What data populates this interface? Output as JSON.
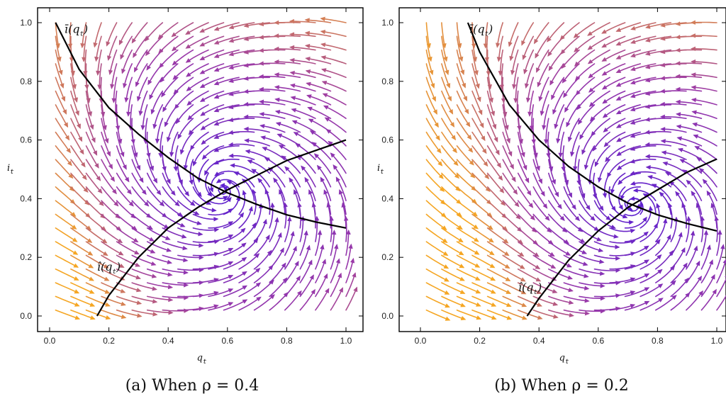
{
  "panels": [
    {
      "caption": "(a) When ρ = 0.4",
      "curve_bar_label": "ī(q",
      "curve_hat_label": "î(q",
      "curve_label_sub": "t",
      "curve_label_close": ")"
    },
    {
      "caption": "(b) When ρ = 0.2",
      "curve_bar_label": "ī(q",
      "curve_hat_label": "î(q",
      "curve_label_sub": "t",
      "curve_label_close": ")"
    }
  ],
  "colors": {
    "low_speed": "#5a1fd1",
    "mid_speed": "#9b3aa8",
    "high_speed": "#f5a623",
    "curve": "#000000"
  },
  "chart_data": [
    {
      "type": "streamplot",
      "xlabel": "q_t",
      "ylabel": "i_t",
      "xlim": [
        0.0,
        1.0
      ],
      "ylim": [
        0.0,
        1.0
      ],
      "xticks": [
        "0.0",
        "0.2",
        "0.4",
        "0.6",
        "0.8",
        "1.0"
      ],
      "yticks": [
        "0.0",
        "0.2",
        "0.4",
        "0.6",
        "0.8",
        "1.0"
      ],
      "curves": [
        {
          "name": "ī(q_t)",
          "x": [
            0.02,
            0.1,
            0.2,
            0.3,
            0.4,
            0.5,
            0.6,
            0.7,
            0.8,
            0.9,
            1.0
          ],
          "y": [
            1.0,
            0.84,
            0.71,
            0.62,
            0.54,
            0.47,
            0.42,
            0.38,
            0.345,
            0.32,
            0.3
          ]
        },
        {
          "name": "î(q_t)",
          "x": [
            0.16,
            0.2,
            0.3,
            0.4,
            0.5,
            0.6,
            0.7,
            0.8,
            0.9,
            1.0
          ],
          "y": [
            0.0,
            0.07,
            0.2,
            0.3,
            0.37,
            0.43,
            0.48,
            0.53,
            0.565,
            0.6
          ]
        }
      ],
      "fixed_point": [
        0.58,
        0.43
      ],
      "grid": false
    },
    {
      "type": "streamplot",
      "xlabel": "q_t",
      "ylabel": "i_t",
      "xlim": [
        0.0,
        1.0
      ],
      "ylim": [
        0.0,
        1.0
      ],
      "xticks": [
        "0.0",
        "0.2",
        "0.4",
        "0.6",
        "0.8",
        "1.0"
      ],
      "yticks": [
        "0.0",
        "0.2",
        "0.4",
        "0.6",
        "0.8",
        "1.0"
      ],
      "curves": [
        {
          "name": "ī(q_t)",
          "x": [
            0.16,
            0.2,
            0.3,
            0.4,
            0.5,
            0.6,
            0.7,
            0.8,
            0.9,
            1.0
          ],
          "y": [
            1.0,
            0.9,
            0.72,
            0.6,
            0.51,
            0.44,
            0.385,
            0.345,
            0.315,
            0.29
          ]
        },
        {
          "name": "î(q_t)",
          "x": [
            0.36,
            0.4,
            0.5,
            0.6,
            0.7,
            0.8,
            0.9,
            1.0
          ],
          "y": [
            0.0,
            0.06,
            0.19,
            0.29,
            0.37,
            0.43,
            0.49,
            0.535
          ]
        }
      ],
      "fixed_point": [
        0.72,
        0.375
      ],
      "grid": false
    }
  ]
}
